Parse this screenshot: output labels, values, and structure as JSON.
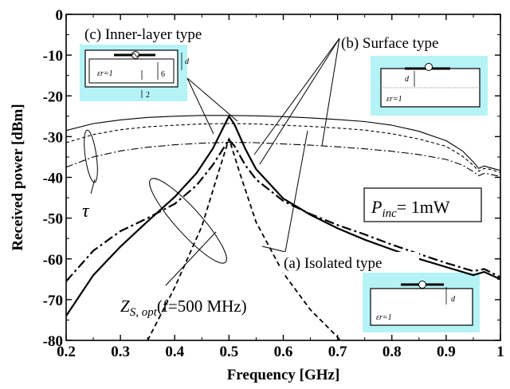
{
  "chart_data": {
    "type": "line",
    "xlabel": "Frequency [GHz]",
    "ylabel": "Received power [dBm]",
    "xlim": [
      0.2,
      1.0
    ],
    "ylim": [
      -80,
      0
    ],
    "x_ticks": [
      0.2,
      0.3,
      0.4,
      0.5,
      0.6,
      0.7,
      0.8,
      0.9,
      1.0
    ],
    "x_tick_labels": [
      "0.2",
      "0.3",
      "0.4",
      "0.5",
      "0.6",
      "0.7",
      "0.8",
      "0.9",
      "1"
    ],
    "y_ticks": [
      0,
      -10,
      -20,
      -30,
      -40,
      -50,
      -60,
      -70,
      -80
    ],
    "y_tick_labels": [
      "0",
      "-10",
      "-20",
      "-30",
      "-40",
      "-50",
      "-60",
      "-70",
      "-80"
    ],
    "grid": false,
    "series": [
      {
        "style": "solid-thin",
        "points": [
          [
            0.2,
            -28.5
          ],
          [
            0.25,
            -26.8
          ],
          [
            0.3,
            -25.9
          ],
          [
            0.35,
            -25.3
          ],
          [
            0.4,
            -25.0
          ],
          [
            0.45,
            -24.8
          ],
          [
            0.5,
            -24.8
          ],
          [
            0.55,
            -24.9
          ],
          [
            0.6,
            -25.1
          ],
          [
            0.65,
            -25.4
          ],
          [
            0.7,
            -25.8
          ],
          [
            0.75,
            -26.3
          ],
          [
            0.8,
            -27.2
          ],
          [
            0.85,
            -28.7
          ],
          [
            0.9,
            -31.0
          ],
          [
            0.93,
            -33.5
          ],
          [
            0.95,
            -36.2
          ],
          [
            0.96,
            -37.8
          ],
          [
            0.97,
            -37.2
          ],
          [
            0.98,
            -37.6
          ],
          [
            1.0,
            -38.3
          ]
        ]
      },
      {
        "style": "dashed-thin",
        "points": [
          [
            0.2,
            -31.5
          ],
          [
            0.25,
            -29.5
          ],
          [
            0.3,
            -28.3
          ],
          [
            0.35,
            -27.6
          ],
          [
            0.4,
            -27.2
          ],
          [
            0.45,
            -26.9
          ],
          [
            0.5,
            -26.8
          ],
          [
            0.55,
            -26.9
          ],
          [
            0.6,
            -27.2
          ],
          [
            0.65,
            -27.5
          ],
          [
            0.7,
            -27.9
          ],
          [
            0.75,
            -28.4
          ],
          [
            0.8,
            -29.3
          ],
          [
            0.85,
            -30.6
          ],
          [
            0.9,
            -32.4
          ],
          [
            0.93,
            -34.8
          ],
          [
            0.95,
            -37.0
          ],
          [
            0.96,
            -38.5
          ],
          [
            0.97,
            -37.8
          ],
          [
            0.98,
            -38.0
          ],
          [
            1.0,
            -38.8
          ]
        ]
      },
      {
        "style": "dashdot-thin",
        "points": [
          [
            0.2,
            -37.5
          ],
          [
            0.25,
            -35.0
          ],
          [
            0.3,
            -33.5
          ],
          [
            0.35,
            -32.6
          ],
          [
            0.4,
            -32.0
          ],
          [
            0.45,
            -31.6
          ],
          [
            0.5,
            -31.4
          ],
          [
            0.55,
            -31.5
          ],
          [
            0.6,
            -31.8
          ],
          [
            0.65,
            -32.1
          ],
          [
            0.7,
            -32.5
          ],
          [
            0.75,
            -33.0
          ],
          [
            0.8,
            -33.6
          ],
          [
            0.85,
            -34.4
          ],
          [
            0.9,
            -35.6
          ],
          [
            0.93,
            -37.0
          ],
          [
            0.95,
            -38.6
          ],
          [
            0.96,
            -39.6
          ],
          [
            0.97,
            -39.0
          ],
          [
            0.98,
            -39.2
          ],
          [
            1.0,
            -39.8
          ]
        ]
      },
      {
        "style": "solid-thick",
        "points": [
          [
            0.2,
            -74.0
          ],
          [
            0.25,
            -64.0
          ],
          [
            0.3,
            -57.0
          ],
          [
            0.35,
            -50.8
          ],
          [
            0.4,
            -44.8
          ],
          [
            0.44,
            -39.0
          ],
          [
            0.47,
            -33.0
          ],
          [
            0.49,
            -27.6
          ],
          [
            0.5,
            -25.0
          ],
          [
            0.51,
            -27.0
          ],
          [
            0.53,
            -33.0
          ],
          [
            0.55,
            -38.0
          ],
          [
            0.6,
            -45.2
          ],
          [
            0.65,
            -49.2
          ],
          [
            0.7,
            -52.5
          ],
          [
            0.75,
            -55.3
          ],
          [
            0.8,
            -57.7
          ],
          [
            0.85,
            -60.0
          ],
          [
            0.9,
            -62.0
          ],
          [
            0.95,
            -64.0
          ],
          [
            0.97,
            -63.2
          ],
          [
            1.0,
            -65.0
          ]
        ]
      },
      {
        "style": "dashdot-thick",
        "points": [
          [
            0.2,
            -65.5
          ],
          [
            0.25,
            -58.0
          ],
          [
            0.3,
            -53.2
          ],
          [
            0.35,
            -50.0
          ],
          [
            0.4,
            -46.5
          ],
          [
            0.44,
            -42.0
          ],
          [
            0.47,
            -37.0
          ],
          [
            0.49,
            -32.8
          ],
          [
            0.5,
            -30.8
          ],
          [
            0.51,
            -32.3
          ],
          [
            0.53,
            -37.0
          ],
          [
            0.55,
            -40.5
          ],
          [
            0.6,
            -45.8
          ],
          [
            0.65,
            -49.0
          ],
          [
            0.7,
            -51.7
          ],
          [
            0.75,
            -54.0
          ],
          [
            0.8,
            -56.5
          ],
          [
            0.85,
            -58.8
          ],
          [
            0.9,
            -61.0
          ],
          [
            0.95,
            -63.0
          ],
          [
            0.97,
            -62.5
          ],
          [
            1.0,
            -64.5
          ]
        ]
      },
      {
        "style": "dashed-thick",
        "points": [
          [
            0.35,
            -80.0
          ],
          [
            0.4,
            -67.0
          ],
          [
            0.45,
            -52.0
          ],
          [
            0.48,
            -39.0
          ],
          [
            0.5,
            -30.5
          ],
          [
            0.52,
            -39.0
          ],
          [
            0.55,
            -51.0
          ],
          [
            0.6,
            -63.5
          ],
          [
            0.65,
            -72.5
          ],
          [
            0.7,
            -79.2
          ],
          [
            0.705,
            -80.0
          ]
        ]
      }
    ],
    "annotations": [
      {
        "id": "inner",
        "text": "(c) Inner-layer type"
      },
      {
        "id": "surface",
        "text": "(b) Surface type"
      },
      {
        "id": "isolated",
        "text": "(a) Isolated  type"
      },
      {
        "id": "tau",
        "text": "τ"
      },
      {
        "id": "pinc_main",
        "text": "P",
        "sub": "inc",
        "rest": "= 1mW"
      },
      {
        "id": "zs_main",
        "text": "Z",
        "sub": "S, opt",
        "rest": "(f=500 MHz)"
      }
    ],
    "insets": {
      "inner": {
        "d": "d",
        "eps": "εr=1",
        "n6": "6",
        "n2": "2"
      },
      "surface": {
        "d": "d",
        "eps": "εr=1"
      },
      "isolated": {
        "d": "d",
        "eps": "εr=1"
      }
    },
    "colors": {
      "inset_bg": "#b5f3f7",
      "line": "#000000"
    }
  }
}
